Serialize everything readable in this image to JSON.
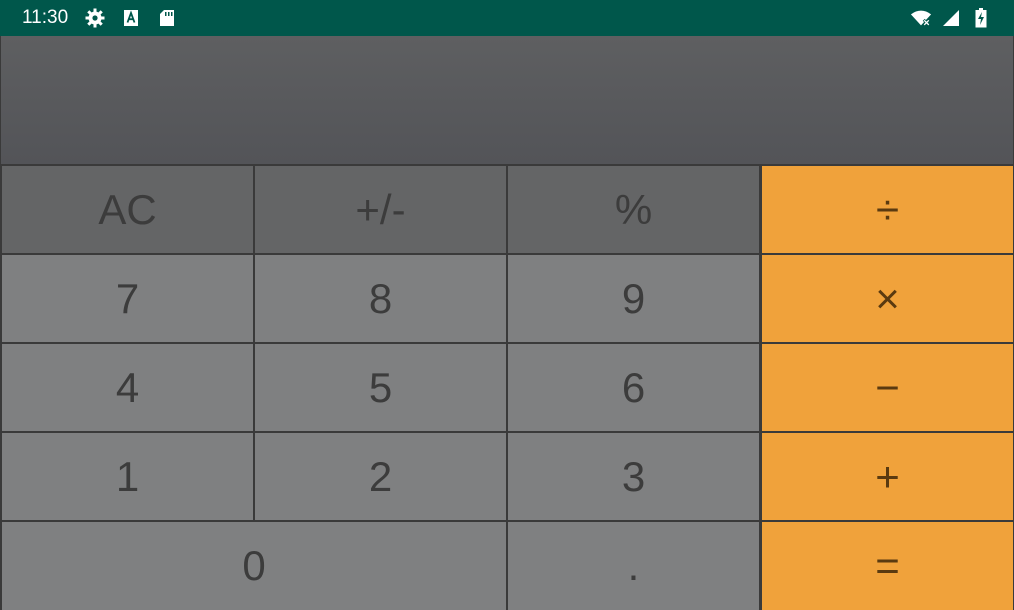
{
  "status_bar": {
    "time": "11:30",
    "left_icons": [
      "gear-icon",
      "a-box-icon",
      "sd-card-icon"
    ],
    "right_icons": [
      "wifi-off-icon",
      "signal-icon",
      "battery-charging-icon"
    ],
    "background_color": "#00574b"
  },
  "display": {
    "value": ""
  },
  "keys": {
    "ac": "AC",
    "plus_minus": "+/-",
    "percent": "%",
    "divide": "÷",
    "seven": "7",
    "eight": "8",
    "nine": "9",
    "multiply": "×",
    "four": "4",
    "five": "5",
    "six": "6",
    "minus": "−",
    "one": "1",
    "two": "2",
    "three": "3",
    "plus": "+",
    "zero": "0",
    "dot": ".",
    "equals": "="
  },
  "colors": {
    "function_key": "#646566",
    "number_key": "#7f8081",
    "operator_key": "#f0a23b",
    "display_background": "#57585b"
  }
}
